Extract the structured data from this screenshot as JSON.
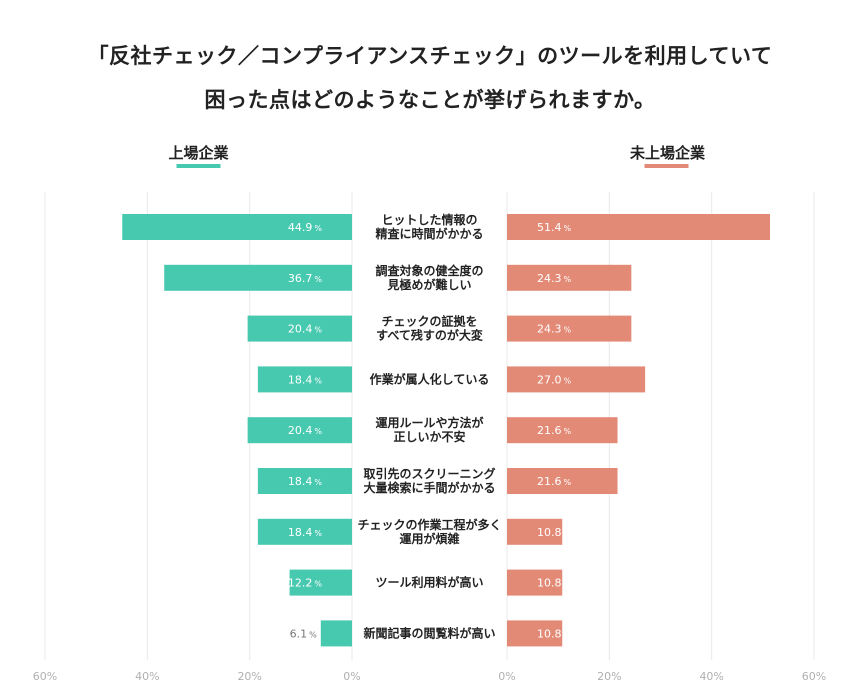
{
  "title": {
    "line1": "「反社チェック／コンプライアンスチェック」のツールを利用していて",
    "line2": "困った点はどのようなことが挙げられますか。"
  },
  "chart_data": {
    "type": "bar",
    "orientation": "horizontal-butterfly",
    "categories": [
      [
        "ヒットした情報の",
        "精査に時間がかかる"
      ],
      [
        "調査対象の健全度の",
        "見極めが難しい"
      ],
      [
        "チェックの証拠を",
        "すべて残すのが大変"
      ],
      [
        "作業が属人化している"
      ],
      [
        "運用ルールや方法が",
        "正しいか不安"
      ],
      [
        "取引先のスクリーニング",
        "大量検索に手間がかかる"
      ],
      [
        "チェックの作業工程が多く",
        "運用が煩雑"
      ],
      [
        "ツール利用料が高い"
      ],
      [
        "新聞記事の閲覧料が高い"
      ]
    ],
    "series": [
      {
        "name": "上場企業",
        "color": "#47c9af",
        "side": "left",
        "values": [
          44.9,
          36.7,
          20.4,
          18.4,
          20.4,
          18.4,
          18.4,
          12.2,
          6.1
        ],
        "labels": [
          "44.9",
          "36.7",
          "20.4",
          "18.4",
          "20.4",
          "18.4",
          "18.4",
          "12.2",
          "6.1"
        ]
      },
      {
        "name": "未上場企業",
        "color": "#e38a77",
        "side": "right",
        "values": [
          51.4,
          24.3,
          24.3,
          27.0,
          21.6,
          21.6,
          10.8,
          10.8,
          10.8
        ],
        "labels": [
          "51.4",
          "24.3",
          "24.3",
          "27.0",
          "21.6",
          "21.6",
          "10.8",
          "10.8",
          "10.8"
        ]
      }
    ],
    "value_suffix": "%",
    "x_ticks": [
      "60%",
      "40%",
      "20%",
      "0%",
      "0%",
      "20%",
      "40%",
      "60%"
    ],
    "xlim": [
      0,
      60
    ],
    "grid": true
  }
}
